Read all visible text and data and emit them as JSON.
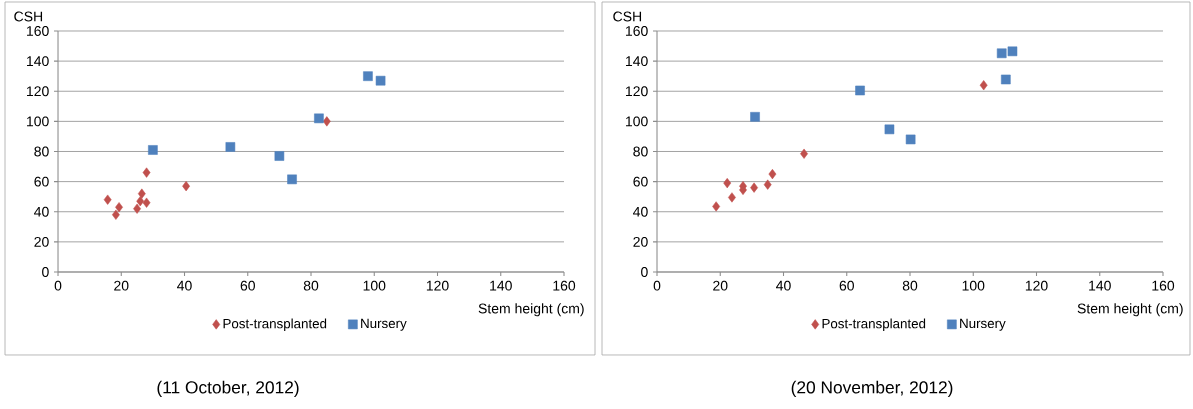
{
  "chart_data": [
    {
      "type": "scatter",
      "xlabel": "Stem height (cm)",
      "ylabel": "CSH",
      "xlim": [
        0,
        160
      ],
      "ylim": [
        0,
        160
      ],
      "xticks": [
        0,
        20,
        40,
        60,
        80,
        100,
        120,
        140,
        160
      ],
      "yticks": [
        0,
        20,
        40,
        60,
        80,
        100,
        120,
        140,
        160
      ],
      "grid": "y",
      "legend": "bottom",
      "annotations": [
        "(11 October, 2012)"
      ],
      "series": [
        {
          "name": "Post-transplanted",
          "color": "#c0504d",
          "marker": "diamond",
          "x": [
            15.7,
            18.3,
            19.3,
            25,
            26,
            26.5,
            28,
            28,
            40.5,
            85
          ],
          "values": [
            48,
            38,
            43,
            42,
            47,
            52,
            46,
            66,
            57,
            100
          ]
        },
        {
          "name": "Nursery",
          "color": "#4f81bd",
          "marker": "square",
          "x": [
            30,
            54.5,
            70,
            74,
            82.5,
            98,
            102
          ],
          "values": [
            81,
            83,
            77,
            61.5,
            102,
            130,
            127
          ]
        }
      ]
    },
    {
      "type": "scatter",
      "xlabel": "Stem height (cm)",
      "ylabel": "CSH",
      "xlim": [
        0,
        160
      ],
      "ylim": [
        0,
        160
      ],
      "xticks": [
        0,
        20,
        40,
        60,
        80,
        100,
        120,
        140,
        160
      ],
      "yticks": [
        0,
        20,
        40,
        60,
        80,
        100,
        120,
        140,
        160
      ],
      "grid": "y",
      "legend": "bottom",
      "annotations": [
        "(20 November, 2012)"
      ],
      "series": [
        {
          "name": "Post-transplanted",
          "color": "#c0504d",
          "marker": "diamond",
          "x": [
            18.7,
            22.2,
            23.7,
            27.2,
            27.2,
            30.7,
            35,
            36.5,
            46.5,
            103.3
          ],
          "values": [
            43.5,
            59,
            49.5,
            57,
            54.5,
            56,
            58,
            65,
            78.5,
            124
          ]
        },
        {
          "name": "Nursery",
          "color": "#4f81bd",
          "marker": "square",
          "x": [
            31,
            64.2,
            73.5,
            80.2,
            109,
            110.3,
            112.4
          ],
          "values": [
            103,
            120.5,
            94.7,
            88,
            145.2,
            127.8,
            146.5
          ]
        }
      ]
    }
  ]
}
